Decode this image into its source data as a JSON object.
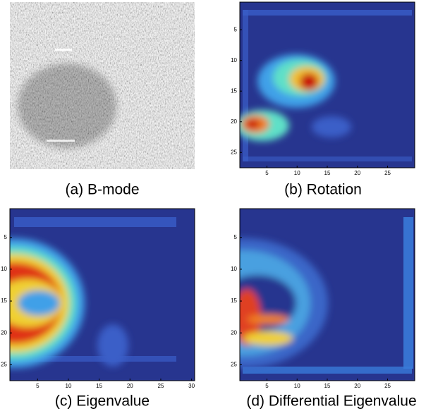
{
  "panels": [
    {
      "caption": "(a) B-mode"
    },
    {
      "caption": "(b) Rotation",
      "xlim": [
        0.5,
        29.5
      ],
      "ylim": [
        0.5,
        27.5
      ],
      "xticks": [
        5,
        10,
        15,
        20,
        25
      ],
      "yticks": [
        5,
        10,
        15,
        20,
        25
      ]
    },
    {
      "caption": "(c) Eigenvalue",
      "xlim": [
        0.5,
        30.5
      ],
      "ylim": [
        0.5,
        27.5
      ],
      "xticks": [
        5,
        10,
        15,
        20,
        25,
        30
      ],
      "yticks": [
        5,
        10,
        15,
        20,
        25
      ]
    },
    {
      "caption": "(d) Differential Eigenvalue",
      "xlim": [
        0.5,
        29.5
      ],
      "ylim": [
        0.5,
        27.5
      ],
      "xticks": [
        5,
        10,
        15,
        20,
        25
      ],
      "yticks": [
        5,
        10,
        15,
        20,
        25
      ]
    }
  ]
}
